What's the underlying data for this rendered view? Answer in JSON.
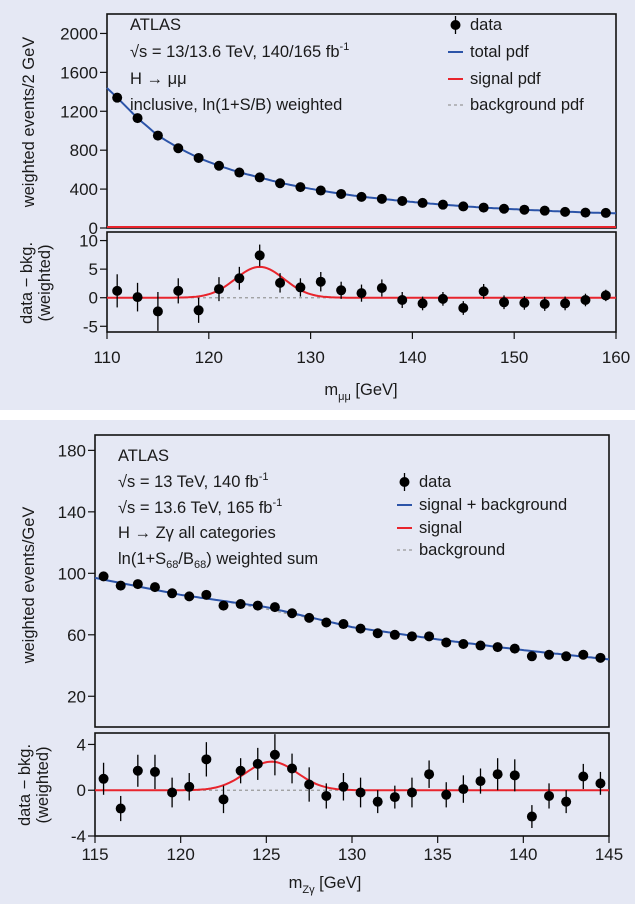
{
  "chart_data": [
    {
      "type": "scatter",
      "experiment": "ATLAS",
      "annotation": {
        "line1": "ATLAS",
        "line2_pre": "√s = 13/13.6 TeV, 140/165 fb",
        "line2_sup": "-1",
        "line3": "H → μμ",
        "line4": "inclusive, ln(1+S/B) weighted"
      },
      "legend": {
        "data": "data",
        "total": "total pdf",
        "signal": "signal pdf",
        "background": "background pdf",
        "placement": "top-right"
      },
      "ylabel": "weighted events/2 GeV",
      "ratio_ylabel_1": "data − bkg.",
      "ratio_ylabel_2": "(weighted)",
      "xlabel_main": "m",
      "xlabel_sub": "μμ",
      "xlabel_unit": " [GeV]",
      "xlim": [
        110,
        160
      ],
      "ylim": [
        0,
        2200
      ],
      "ratio_ylim": [
        -6,
        11.5
      ],
      "xticks": [
        "110",
        "120",
        "130",
        "140",
        "150",
        "160"
      ],
      "yticks": [
        "0",
        "400",
        "800",
        "1200",
        "1600",
        "2000"
      ],
      "ratio_yticks": [
        "-5",
        "0",
        "5",
        "10"
      ],
      "x": [
        111,
        113,
        115,
        117,
        119,
        121,
        123,
        125,
        127,
        129,
        131,
        133,
        135,
        137,
        139,
        141,
        143,
        145,
        147,
        149,
        151,
        153,
        155,
        157,
        159
      ],
      "y": [
        1340,
        1130,
        950,
        820,
        720,
        640,
        570,
        520,
        460,
        420,
        385,
        350,
        320,
        300,
        278,
        258,
        240,
        222,
        210,
        198,
        188,
        178,
        166,
        158,
        155
      ],
      "resid": [
        1.2,
        0.1,
        -2.4,
        1.2,
        -2.2,
        1.5,
        3.4,
        7.4,
        2.6,
        1.8,
        2.8,
        1.3,
        0.8,
        1.7,
        -0.4,
        -1.0,
        -0.2,
        -1.8,
        1.1,
        -0.8,
        -0.9,
        -1.1,
        -1.0,
        -0.4,
        0.4
      ],
      "resid_err": [
        2.9,
        2.5,
        3.4,
        2.2,
        2.2,
        2.1,
        2.0,
        1.9,
        1.7,
        1.6,
        1.7,
        1.5,
        1.5,
        1.5,
        1.4,
        1.2,
        1.2,
        1.2,
        1.3,
        1.2,
        1.2,
        1.2,
        1.2,
        1.1,
        1.0
      ],
      "total_pdf": {
        "x": [
          110,
          111,
          113,
          115,
          117,
          119,
          121,
          123,
          125,
          127,
          129,
          131,
          133,
          135,
          137,
          139,
          141,
          143,
          145,
          147,
          149,
          151,
          153,
          155,
          157,
          159,
          160
        ],
        "y": [
          1440,
          1340,
          1130,
          950,
          825,
          720,
          640,
          572,
          520,
          465,
          422,
          385,
          352,
          322,
          300,
          278,
          258,
          240,
          224,
          210,
          198,
          188,
          178,
          168,
          160,
          154,
          152
        ]
      },
      "signal_pdf": {
        "mean": 125,
        "sigma": 2.4,
        "amplitude": 5.4
      },
      "colors": {
        "data": "#000000",
        "total": "#2c54a8",
        "signal": "#e8242c",
        "background": "#999999",
        "background_panel": "#e5e8f4"
      }
    },
    {
      "type": "scatter",
      "experiment": "ATLAS",
      "annotation": {
        "line1": "ATLAS",
        "line2_pre": "√s = 13 TeV, 140 fb",
        "line2_sup": "-1",
        "line3_pre": "√s = 13.6 TeV, 165 fb",
        "line3_sup": "-1",
        "line4": "H → Zγ all categories",
        "line5_a": "ln(1+S",
        "line5_b": "68",
        "line5_c": "/B",
        "line5_d": "68",
        "line5_e": ") weighted sum"
      },
      "legend": {
        "data": "data",
        "total": "signal + background",
        "signal": "signal",
        "background": "background",
        "placement": "top-right"
      },
      "ylabel": "weighted events/GeV",
      "ratio_ylabel_1": "data − bkg.",
      "ratio_ylabel_2": "(weighted)",
      "xlabel_main": "m",
      "xlabel_sub": "Zγ",
      "xlabel_unit": " [GeV]",
      "xlim": [
        115,
        145
      ],
      "ylim": [
        0,
        190
      ],
      "ratio_ylim": [
        -4,
        5
      ],
      "xticks": [
        "115",
        "120",
        "125",
        "130",
        "135",
        "140",
        "145"
      ],
      "yticks": [
        "20",
        "60",
        "100",
        "140",
        "180"
      ],
      "ratio_yticks": [
        "-4",
        "0",
        "4"
      ],
      "x": [
        115.5,
        116.5,
        117.5,
        118.5,
        119.5,
        120.5,
        121.5,
        122.5,
        123.5,
        124.5,
        125.5,
        126.5,
        127.5,
        128.5,
        129.5,
        130.5,
        131.5,
        132.5,
        133.5,
        134.5,
        135.5,
        136.5,
        137.5,
        138.5,
        139.5,
        140.5,
        141.5,
        142.5,
        143.5,
        144.5
      ],
      "y": [
        98,
        92,
        93,
        91,
        87,
        85,
        86,
        79,
        80,
        79,
        78,
        74,
        71,
        68,
        67,
        64,
        61,
        60,
        59,
        59,
        55,
        54,
        53,
        52,
        51,
        46,
        47,
        46,
        47,
        45
      ],
      "resid": [
        1.0,
        -1.6,
        1.7,
        1.6,
        -0.2,
        0.3,
        2.7,
        -0.8,
        1.7,
        2.3,
        3.1,
        1.9,
        0.5,
        -0.5,
        0.3,
        -0.2,
        -1.0,
        -0.6,
        -0.2,
        1.4,
        -0.4,
        0.1,
        0.8,
        1.4,
        1.3,
        -2.3,
        -0.5,
        -1.0,
        1.2,
        0.6
      ],
      "resid_err": [
        1.4,
        1.1,
        1.4,
        1.5,
        1.3,
        1.2,
        1.5,
        1.2,
        1.1,
        1.4,
        1.8,
        1.3,
        1.5,
        1.1,
        1.2,
        1.3,
        1.0,
        1.0,
        1.3,
        1.2,
        1.1,
        1.2,
        1.1,
        1.4,
        1.4,
        1.0,
        1.1,
        1.0,
        1.1,
        1.0
      ],
      "total_pdf": {
        "x": [
          115,
          120,
          125,
          130,
          135,
          140,
          145
        ],
        "y": [
          97,
          86,
          78,
          65,
          57,
          50,
          44
        ]
      },
      "signal_pdf": {
        "mean": 125.3,
        "sigma": 1.5,
        "amplitude": 2.5
      },
      "colors": {
        "data": "#000000",
        "total": "#2c54a8",
        "signal": "#e8242c",
        "background": "#999999",
        "background_panel": "#e5e8f4"
      }
    }
  ]
}
